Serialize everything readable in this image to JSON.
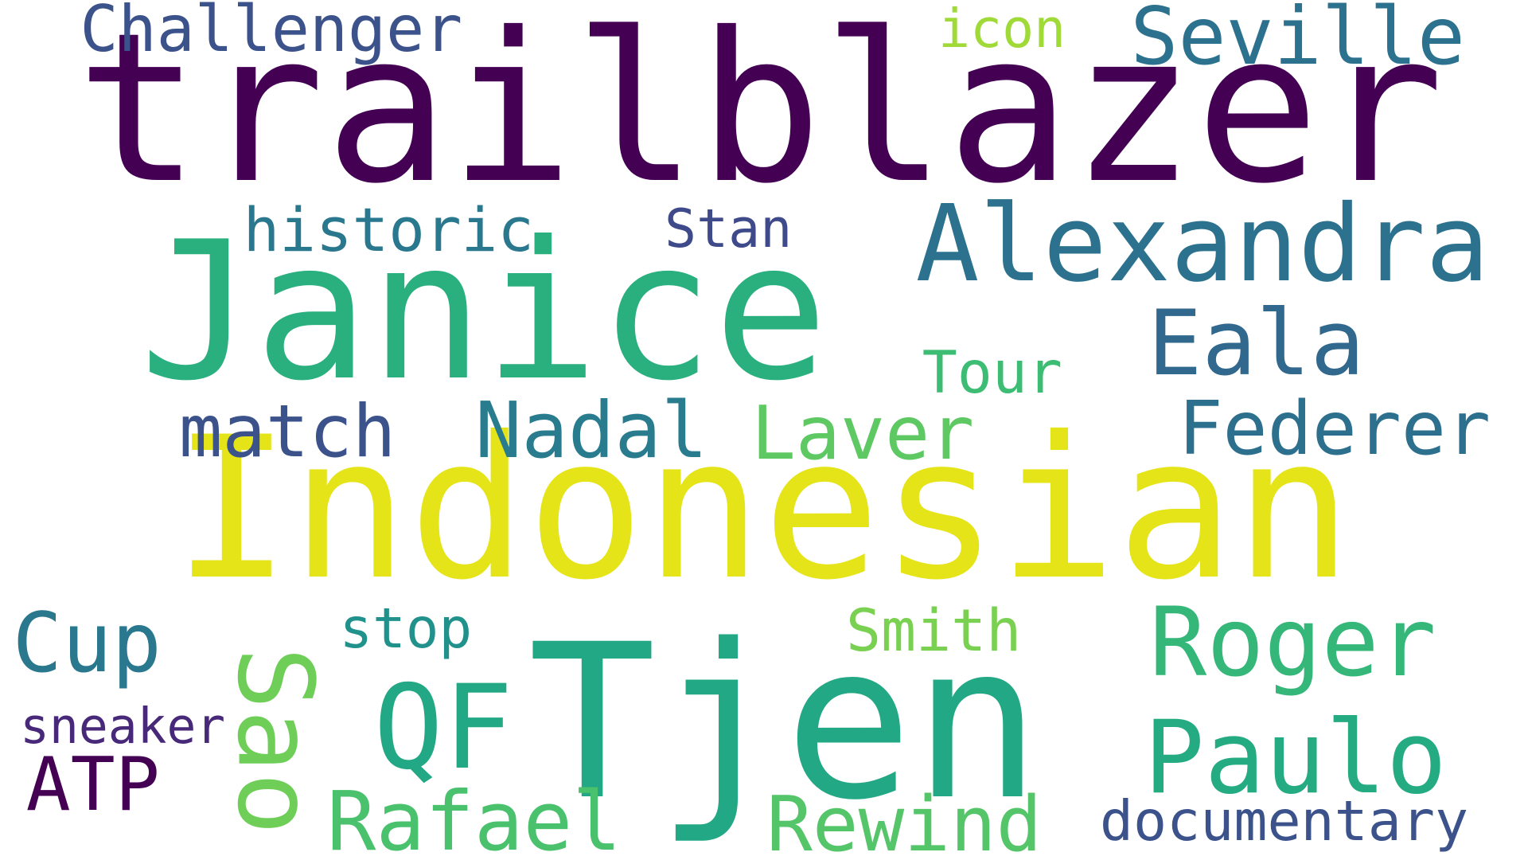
{
  "word_cloud": {
    "words": [
      {
        "text": "trailblazer",
        "color": "#440154"
      },
      {
        "text": "Indonesian",
        "color": "#e5e419"
      },
      {
        "text": "Janice",
        "color": "#2ab07f"
      },
      {
        "text": "Tjen",
        "color": "#22a884"
      },
      {
        "text": "Alexandra",
        "color": "#2c728e"
      },
      {
        "text": "Eala",
        "color": "#31688e"
      },
      {
        "text": "Roger",
        "color": "#35b779"
      },
      {
        "text": "Paulo",
        "color": "#25ab82"
      },
      {
        "text": "Federer",
        "color": "#2d708e"
      },
      {
        "text": "Nadal",
        "color": "#287c8e"
      },
      {
        "text": "Laver",
        "color": "#5ec962"
      },
      {
        "text": "match",
        "color": "#3b528b"
      },
      {
        "text": "Seville",
        "color": "#2c728e"
      },
      {
        "text": "Sao",
        "color": "#6ece58"
      },
      {
        "text": "QF",
        "color": "#22a884"
      },
      {
        "text": "Rafael",
        "color": "#4ac16d"
      },
      {
        "text": "Rewind",
        "color": "#54c568"
      },
      {
        "text": "Cup",
        "color": "#2a788e"
      },
      {
        "text": "ATP",
        "color": "#440154"
      },
      {
        "text": "Challenger",
        "color": "#3b528b"
      },
      {
        "text": "historic",
        "color": "#2a788e"
      },
      {
        "text": "Stan",
        "color": "#3e4a89"
      },
      {
        "text": "Tour",
        "color": "#3dbc74"
      },
      {
        "text": "Smith",
        "color": "#7ad151"
      },
      {
        "text": "stop",
        "color": "#21918c"
      },
      {
        "text": "sneaker",
        "color": "#482878"
      },
      {
        "text": "icon",
        "color": "#a0da39"
      },
      {
        "text": "documentary",
        "color": "#3b528b"
      }
    ]
  }
}
